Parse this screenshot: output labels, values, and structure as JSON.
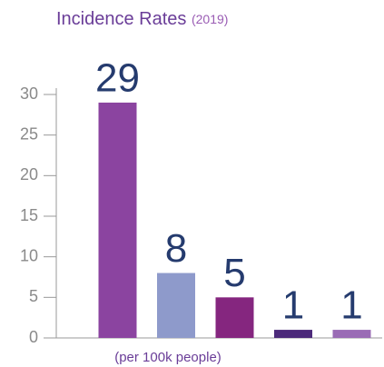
{
  "chart_data": {
    "type": "bar",
    "title": "Incidence Rates",
    "subtitle": "(2019)",
    "x_label": "(per 100k people)",
    "categories": [
      null,
      null,
      null,
      null,
      null
    ],
    "values": [
      29,
      8,
      5,
      1,
      1
    ],
    "colors": [
      "#8b44a0",
      "#8e9acb",
      "#85267f",
      "#4c2a7a",
      "#9a6cb5"
    ],
    "ylim": [
      0,
      30
    ],
    "yticks": [
      0,
      5,
      10,
      15,
      20,
      25,
      30
    ],
    "grid": false
  }
}
